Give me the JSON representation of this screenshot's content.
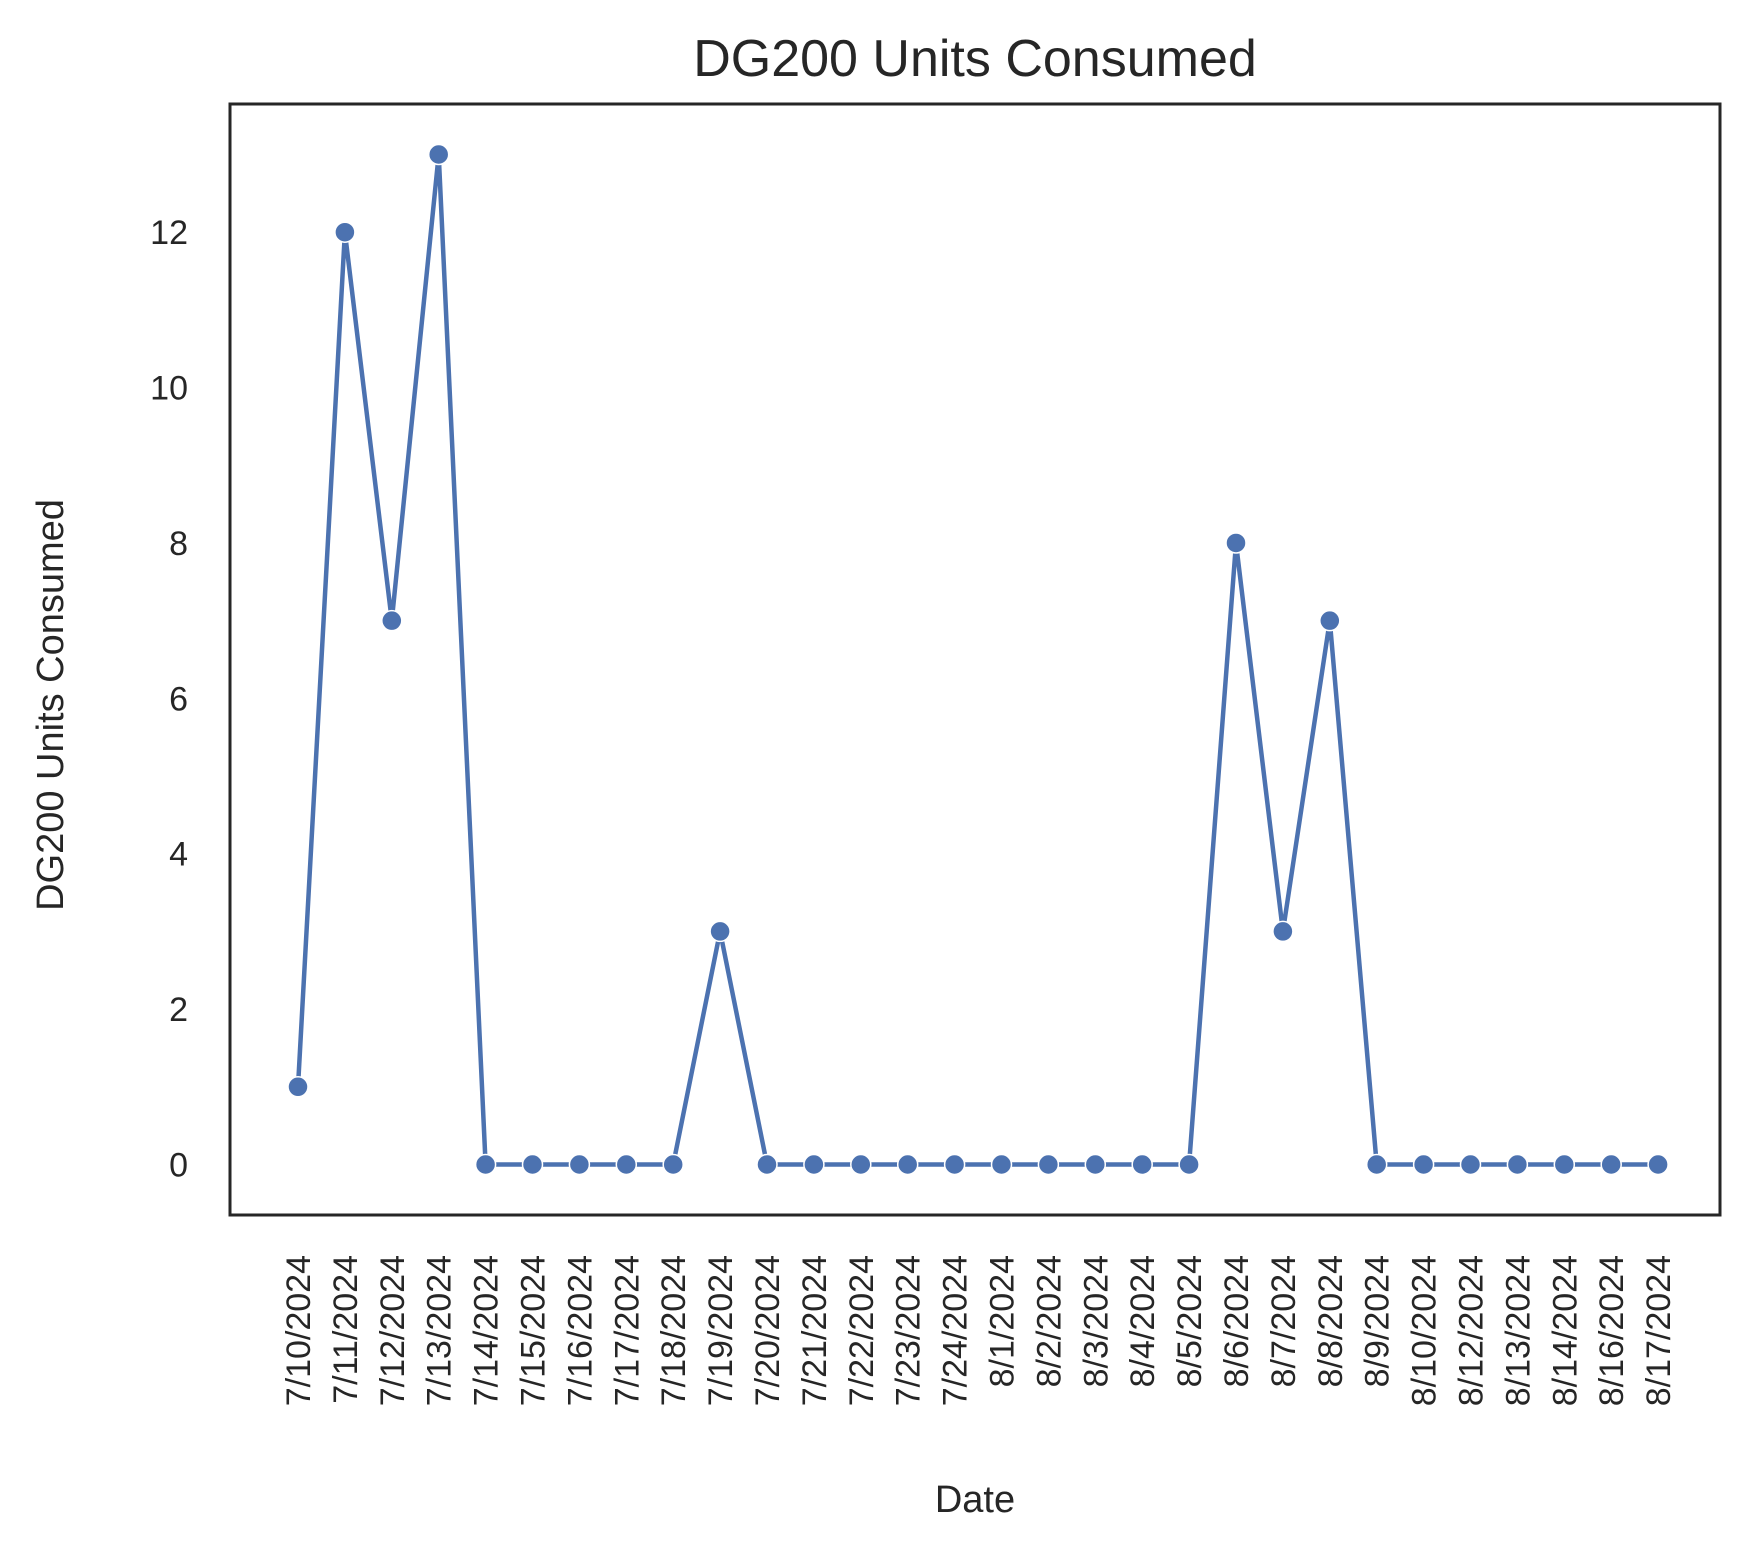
{
  "chart_data": {
    "type": "line",
    "title": "DG200 Units Consumed",
    "xlabel": "Date",
    "ylabel": "DG200 Units Consumed",
    "categories": [
      "7/10/2024",
      "7/11/2024",
      "7/12/2024",
      "7/13/2024",
      "7/14/2024",
      "7/15/2024",
      "7/16/2024",
      "7/17/2024",
      "7/18/2024",
      "7/19/2024",
      "7/20/2024",
      "7/21/2024",
      "7/22/2024",
      "7/23/2024",
      "7/24/2024",
      "8/1/2024",
      "8/2/2024",
      "8/3/2024",
      "8/4/2024",
      "8/5/2024",
      "8/6/2024",
      "8/7/2024",
      "8/8/2024",
      "8/9/2024",
      "8/10/2024",
      "8/12/2024",
      "8/13/2024",
      "8/14/2024",
      "8/16/2024",
      "8/17/2024"
    ],
    "series": [
      {
        "values": [
          1,
          12,
          7,
          13,
          0,
          0,
          0,
          0,
          0,
          3,
          0,
          0,
          0,
          0,
          0,
          0,
          0,
          0,
          0,
          0,
          8,
          3,
          7,
          0,
          0,
          0,
          0,
          0,
          0,
          0
        ]
      }
    ],
    "ylim": [
      -0.65,
      13.65
    ],
    "yticks": [
      0,
      2,
      4,
      6,
      8,
      10,
      12
    ],
    "grid": false,
    "colors": {
      "line": "#4c72b0",
      "axes": "#262626",
      "text": "#262626"
    }
  }
}
